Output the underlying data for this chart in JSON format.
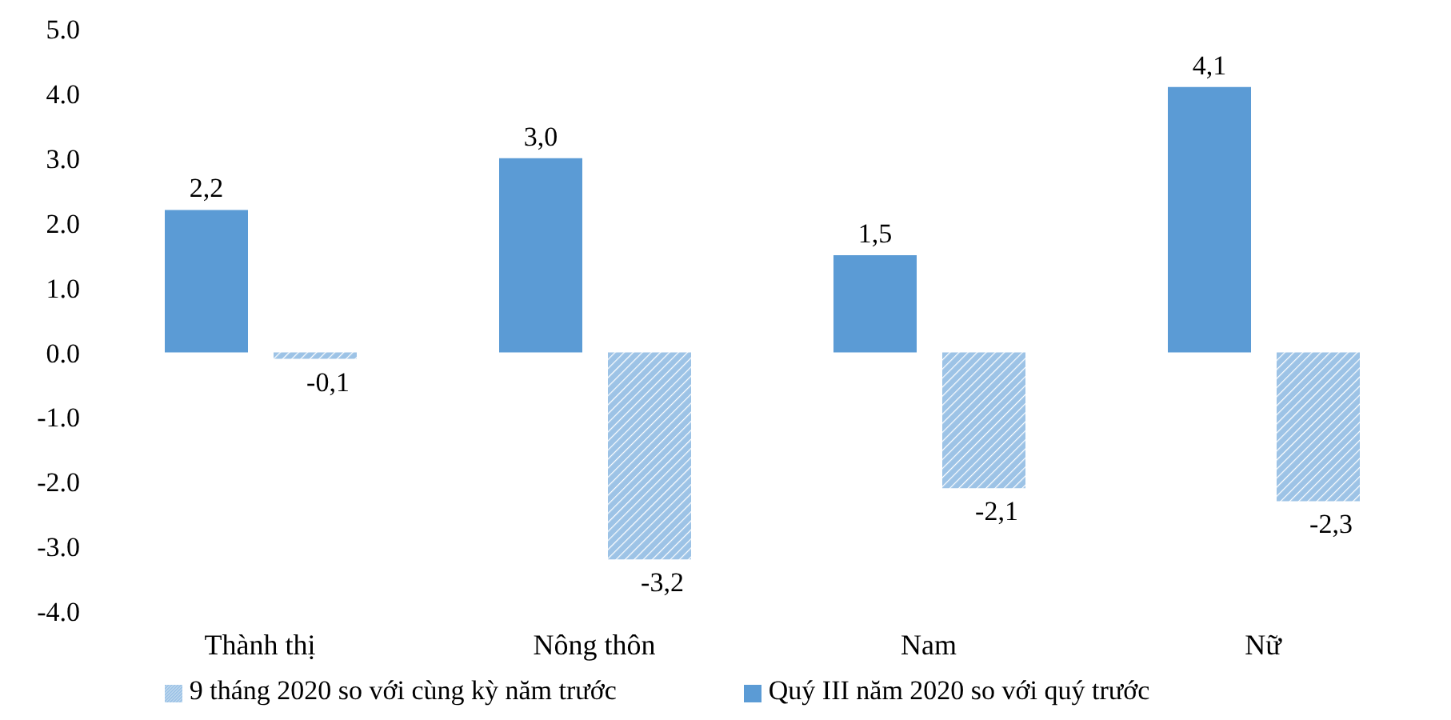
{
  "chart_data": {
    "type": "bar",
    "categories": [
      "Thành thị",
      "Nông thôn",
      "Nam",
      "Nữ"
    ],
    "series": [
      {
        "name": "Quý III năm 2020 so với quý trước",
        "color": "#5b9bd5",
        "values": [
          2.2,
          3.0,
          1.5,
          4.1
        ],
        "value_labels": [
          "2,2",
          "3,0",
          "1,5",
          "4,1"
        ]
      },
      {
        "name": "9 tháng 2020 so với cùng kỳ năm trước",
        "color": "#9dc3e6",
        "values": [
          -0.1,
          -3.2,
          -2.1,
          -2.3
        ],
        "value_labels": [
          "-0,1",
          "-3,2",
          "-2,1",
          "-2,3"
        ]
      }
    ],
    "ylim": [
      -4,
      5
    ],
    "yticks": [
      {
        "value": -4,
        "label": "-4.0"
      },
      {
        "value": -3,
        "label": "-3.0"
      },
      {
        "value": -2,
        "label": "-2.0"
      },
      {
        "value": -1,
        "label": "-1.0"
      },
      {
        "value": 0,
        "label": "0.0"
      },
      {
        "value": 1,
        "label": "1.0"
      },
      {
        "value": 2,
        "label": "2.0"
      },
      {
        "value": 3,
        "label": "3.0"
      },
      {
        "value": 4,
        "label": "4.0"
      },
      {
        "value": 5,
        "label": "5.0"
      }
    ],
    "grid": false,
    "legend": "bottom"
  }
}
